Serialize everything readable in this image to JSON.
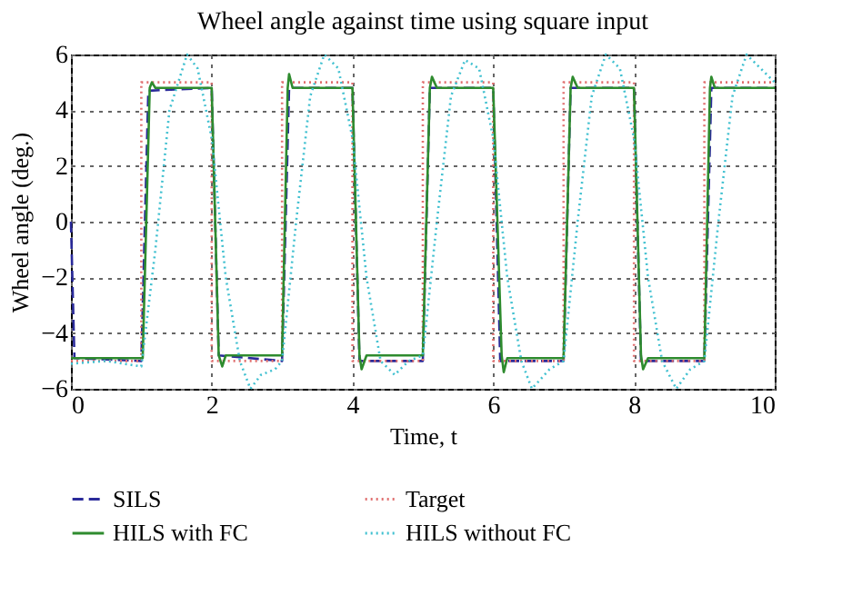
{
  "chart_data": {
    "type": "line",
    "title": "Wheel angle against time using square input",
    "xlabel": "Time, t",
    "ylabel": "Wheel angle (deg.)",
    "xlim": [
      0,
      10
    ],
    "xticks": [
      0,
      2,
      4,
      6,
      8,
      10
    ],
    "ylim": [
      -6,
      6
    ],
    "yticks": [
      -6,
      -4,
      -2,
      0,
      2,
      4,
      6
    ],
    "grid": true,
    "legend": "bottom",
    "marker": "none",
    "series": [
      {
        "name": "SILS",
        "color": "#2a2a9a",
        "line_style": "dashed",
        "x": [
          0,
          0.05,
          1.0,
          1.1,
          2.0,
          2.1,
          3.0,
          3.1,
          4.0,
          4.1,
          5.0,
          5.1,
          6.0,
          6.1,
          7.0,
          7.1,
          8.0,
          8.1,
          9.0,
          9.1,
          10
        ],
        "values": [
          0,
          -4.9,
          -5,
          4.7,
          4.8,
          -4.8,
          -5,
          4.8,
          4.8,
          -5,
          -5,
          4.8,
          4.8,
          -5,
          -5,
          4.8,
          4.8,
          -5,
          -5,
          4.8,
          4.8
        ]
      },
      {
        "name": "Target",
        "color": "#e07070",
        "line_style": "dotted",
        "x": [
          0,
          1,
          1,
          2,
          2,
          3,
          3,
          4,
          4,
          5,
          5,
          6,
          6,
          7,
          7,
          8,
          8,
          9,
          9,
          10
        ],
        "values": [
          -5,
          -5,
          5,
          5,
          -5,
          -5,
          5,
          5,
          -5,
          -5,
          5,
          5,
          -5,
          -5,
          5,
          5,
          -5,
          -5,
          5,
          5
        ]
      },
      {
        "name": "HILS with FC",
        "color": "#2e8b2e",
        "line_style": "solid",
        "x": [
          0,
          1.02,
          1.12,
          1.15,
          1.2,
          2.0,
          2.1,
          2.15,
          2.2,
          3.0,
          3.08,
          3.1,
          3.15,
          4.0,
          4.1,
          4.13,
          4.2,
          5.0,
          5.1,
          5.13,
          5.2,
          6.0,
          6.12,
          6.15,
          6.2,
          7.0,
          7.1,
          7.13,
          7.2,
          8.0,
          8.1,
          8.13,
          8.2,
          9.0,
          9.08,
          9.1,
          9.15,
          10
        ],
        "values": [
          -4.9,
          -4.9,
          4.8,
          5.0,
          4.8,
          4.8,
          -4.8,
          -5.2,
          -4.8,
          -4.8,
          4.8,
          5.3,
          4.8,
          4.8,
          -4.8,
          -5.3,
          -4.8,
          -4.8,
          4.8,
          5.2,
          4.8,
          4.8,
          -4.8,
          -5.4,
          -4.9,
          -4.9,
          4.8,
          5.2,
          4.8,
          4.8,
          -4.8,
          -5.3,
          -4.9,
          -4.9,
          4.8,
          5.2,
          4.8,
          4.8
        ]
      },
      {
        "name": "HILS without FC",
        "color": "#40c0d0",
        "line_style": "dotted",
        "x": [
          0,
          0.5,
          1.0,
          1.2,
          1.4,
          1.65,
          1.8,
          2.0,
          2.2,
          2.4,
          2.55,
          2.7,
          2.9,
          3.0,
          3.2,
          3.4,
          3.6,
          3.8,
          4.0,
          4.2,
          4.4,
          4.6,
          4.8,
          5.0,
          5.2,
          5.4,
          5.6,
          5.8,
          6.0,
          6.2,
          6.4,
          6.55,
          6.8,
          7.0,
          7.2,
          7.4,
          7.6,
          7.8,
          8.0,
          8.2,
          8.4,
          8.6,
          8.8,
          9.0,
          9.2,
          9.4,
          9.6,
          9.8,
          10
        ],
        "values": [
          -5.1,
          -5.0,
          -5.2,
          -1,
          4,
          6,
          5.5,
          3,
          -2,
          -5,
          -6,
          -5.5,
          -5.3,
          -5,
          0,
          4.5,
          6,
          5.5,
          3,
          -2,
          -5,
          -5.5,
          -5,
          -4.8,
          0,
          4.5,
          5.8,
          5.5,
          3,
          -2,
          -5,
          -6,
          -5.3,
          -5,
          0,
          4.5,
          6,
          5.5,
          3,
          -2,
          -5,
          -6,
          -5.3,
          -5,
          0,
          4.5,
          6,
          5.5,
          5
        ]
      }
    ]
  }
}
